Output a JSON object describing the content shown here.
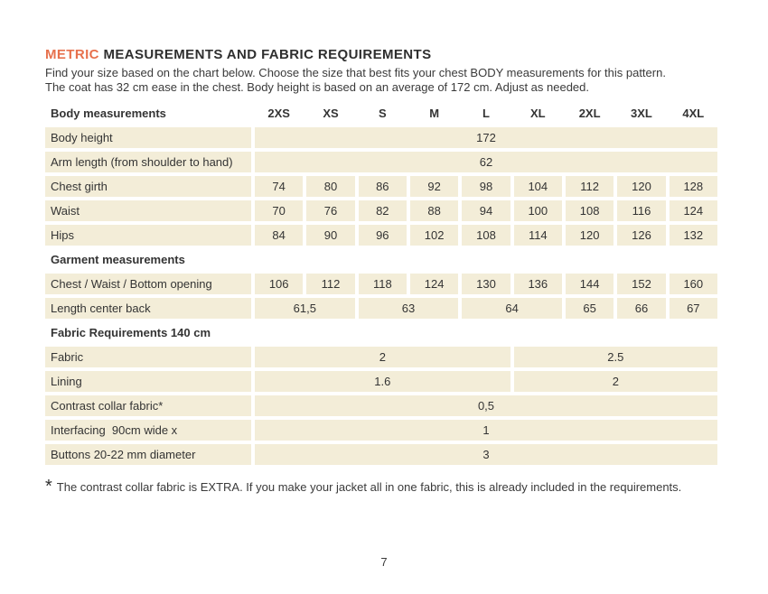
{
  "page": {
    "title_highlight": "METRIC",
    "title_rest": "MEASUREMENTS AND FABRIC REQUIREMENTS",
    "intro_line1": "Find your size based on the chart below. Choose the size that best fits your chest BODY measurements for this pattern.",
    "intro_line2": "The coat has 32 cm ease in the chest. Body height is based on an average of 172 cm. Adjust as needed.",
    "footnote_marker": "*",
    "footnote_text": "The contrast collar fabric is EXTRA. If you make your jacket all in one fabric, this is already included in the requirements.",
    "page_number": "7"
  },
  "colors": {
    "accent_orange": "#e7714d",
    "cell_beige": "#f3edd8",
    "text": "#383838"
  },
  "table": {
    "header_label": "Body measurements",
    "sizes": [
      "2XS",
      "XS",
      "S",
      "M",
      "L",
      "XL",
      "2XL",
      "3XL",
      "4XL"
    ],
    "body_height": {
      "label": "Body height",
      "value": "172"
    },
    "arm_length": {
      "label": "Arm length (from shoulder to hand)",
      "value": "62"
    },
    "chest_girth": {
      "label": "Chest girth",
      "values": [
        "74",
        "80",
        "86",
        "92",
        "98",
        "104",
        "112",
        "120",
        "128"
      ]
    },
    "waist": {
      "label": "Waist",
      "values": [
        "70",
        "76",
        "82",
        "88",
        "94",
        "100",
        "108",
        "116",
        "124"
      ]
    },
    "hips": {
      "label": "Hips",
      "values": [
        "84",
        "90",
        "96",
        "102",
        "108",
        "114",
        "120",
        "126",
        "132"
      ]
    },
    "garment_section": "Garment measurements",
    "opening": {
      "label": "Chest / Waist / Bottom opening",
      "values": [
        "106",
        "112",
        "118",
        "124",
        "130",
        "136",
        "144",
        "152",
        "160"
      ]
    },
    "length_center_back": {
      "label": "Length center back",
      "values": [
        "61,5",
        "63",
        "64",
        "65",
        "66",
        "67"
      ]
    },
    "fabric_section": "Fabric Requirements 140 cm",
    "fabric": {
      "label": "Fabric",
      "values": [
        "2",
        "2.5"
      ]
    },
    "lining": {
      "label": "Lining",
      "values": [
        "1.6",
        "2"
      ]
    },
    "contrast_collar": {
      "label": "Contrast collar fabric*",
      "value": "0,5"
    },
    "interfacing": {
      "label": "Interfacing  90cm wide x",
      "value": "1"
    },
    "buttons": {
      "label": "Buttons 20-22 mm diameter",
      "value": "3"
    }
  }
}
